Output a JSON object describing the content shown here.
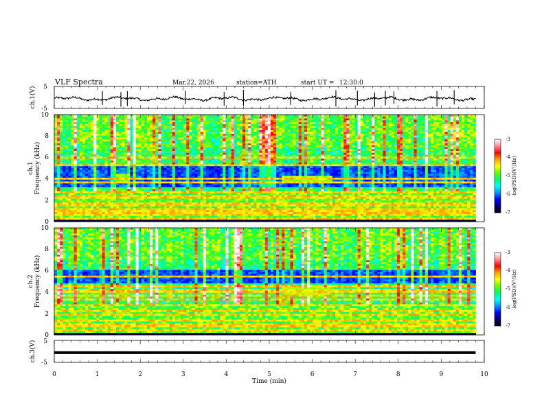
{
  "header": {
    "title": "VLF  Spectra",
    "date": "Mar.22, 2026",
    "station": "station=ATH",
    "start_ut_label": "start  UT  =",
    "start_ut_value": "12:30:0"
  },
  "colors": {
    "line": "#000000",
    "colorbar_stops": [
      "#000000",
      "#00007a",
      "#0000ff",
      "#0096ff",
      "#00ffff",
      "#00ff66",
      "#66ff00",
      "#ffff00",
      "#ffa000",
      "#ff0000",
      "#ff9090",
      "#ffffff"
    ]
  },
  "chart_data": [
    {
      "type": "line",
      "name": "ch1-waveform",
      "ylabel": "ch.1(V)",
      "ylim": [
        -5,
        5
      ],
      "yticks": [
        "5",
        "-5"
      ],
      "xlim": [
        0,
        10
      ],
      "baseline": -0.6,
      "spikes_t": [
        1.12,
        1.55,
        1.7,
        3.05,
        3.95,
        4.4,
        5.5,
        6.55,
        7.05,
        7.45,
        7.7,
        7.9,
        8.9,
        9.3
      ],
      "x_end": 9.8
    },
    {
      "type": "heatmap",
      "name": "ch1-spectrogram",
      "ylabel": "ch.1\nFrequency (kHz)",
      "ylabel_line1": "ch.1",
      "ylabel_line2": "Frequency (kHz)",
      "ylim": [
        0,
        10
      ],
      "yticks": [
        "0",
        "2",
        "4",
        "6",
        "8",
        "10"
      ],
      "xlim": [
        0,
        10
      ],
      "x_end": 9.8,
      "colorbar": {
        "range": [
          -7,
          -3
        ],
        "ticks": [
          "-3",
          "-4",
          "-5",
          "-6",
          "-7"
        ],
        "label": "log(PSD)(V²/Hz)"
      },
      "features": {
        "quiet_band_khz": [
          3.2,
          5.4
        ],
        "bright_patches": [
          {
            "t": [
              1.45,
              1.75
            ],
            "f": [
              3.6,
              4.4
            ]
          },
          {
            "t": [
              5.3,
              6.5
            ],
            "f": [
              3.7,
              4.3
            ]
          }
        ],
        "tone_lines_khz": [
          0.3,
          0.6,
          0.9,
          1.2,
          1.6,
          2.2,
          2.4,
          2.8,
          3.6,
          4.0,
          5.3,
          6.0
        ]
      }
    },
    {
      "type": "heatmap",
      "name": "ch2-spectrogram",
      "ylabel": "ch.2\nFrequency (kHz)",
      "ylabel_line1": "ch.2",
      "ylabel_line2": "Frequency (kHz)",
      "ylim": [
        0,
        10
      ],
      "yticks": [
        "0",
        "2",
        "4",
        "6",
        "8",
        "10"
      ],
      "xlim": [
        0,
        10
      ],
      "x_end": 9.8,
      "colorbar": {
        "range": [
          -7,
          -3
        ],
        "ticks": [
          "-3",
          "-4",
          "-5",
          "-6",
          "-7"
        ],
        "label": "log(PSD)(V²/Hz)"
      },
      "features": {
        "quiet_band_khz": [
          4.8,
          6.0
        ],
        "bright_patches": [
          {
            "t": [
              1.45,
              1.75
            ],
            "f": [
              3.6,
              4.4
            ]
          },
          {
            "t": [
              5.3,
              6.5
            ],
            "f": [
              3.6,
              4.4
            ]
          }
        ],
        "tone_lines_khz": [
          0.5,
          0.9,
          1.4,
          1.8,
          2.2,
          2.8,
          3.3,
          3.6,
          4.1,
          4.6,
          5.4
        ]
      }
    },
    {
      "type": "line",
      "name": "ch3-waveform",
      "ylabel": "ch.3(V)",
      "ylim": [
        -5,
        5
      ],
      "yticks": [
        "5",
        "-5"
      ],
      "xlim": [
        0,
        10
      ],
      "baseline": -0.6,
      "x_end": 9.8,
      "xlabel": "Time  (min)",
      "xticks": [
        "0",
        "1",
        "2",
        "3",
        "4",
        "5",
        "6",
        "7",
        "8",
        "9",
        "10"
      ]
    }
  ]
}
